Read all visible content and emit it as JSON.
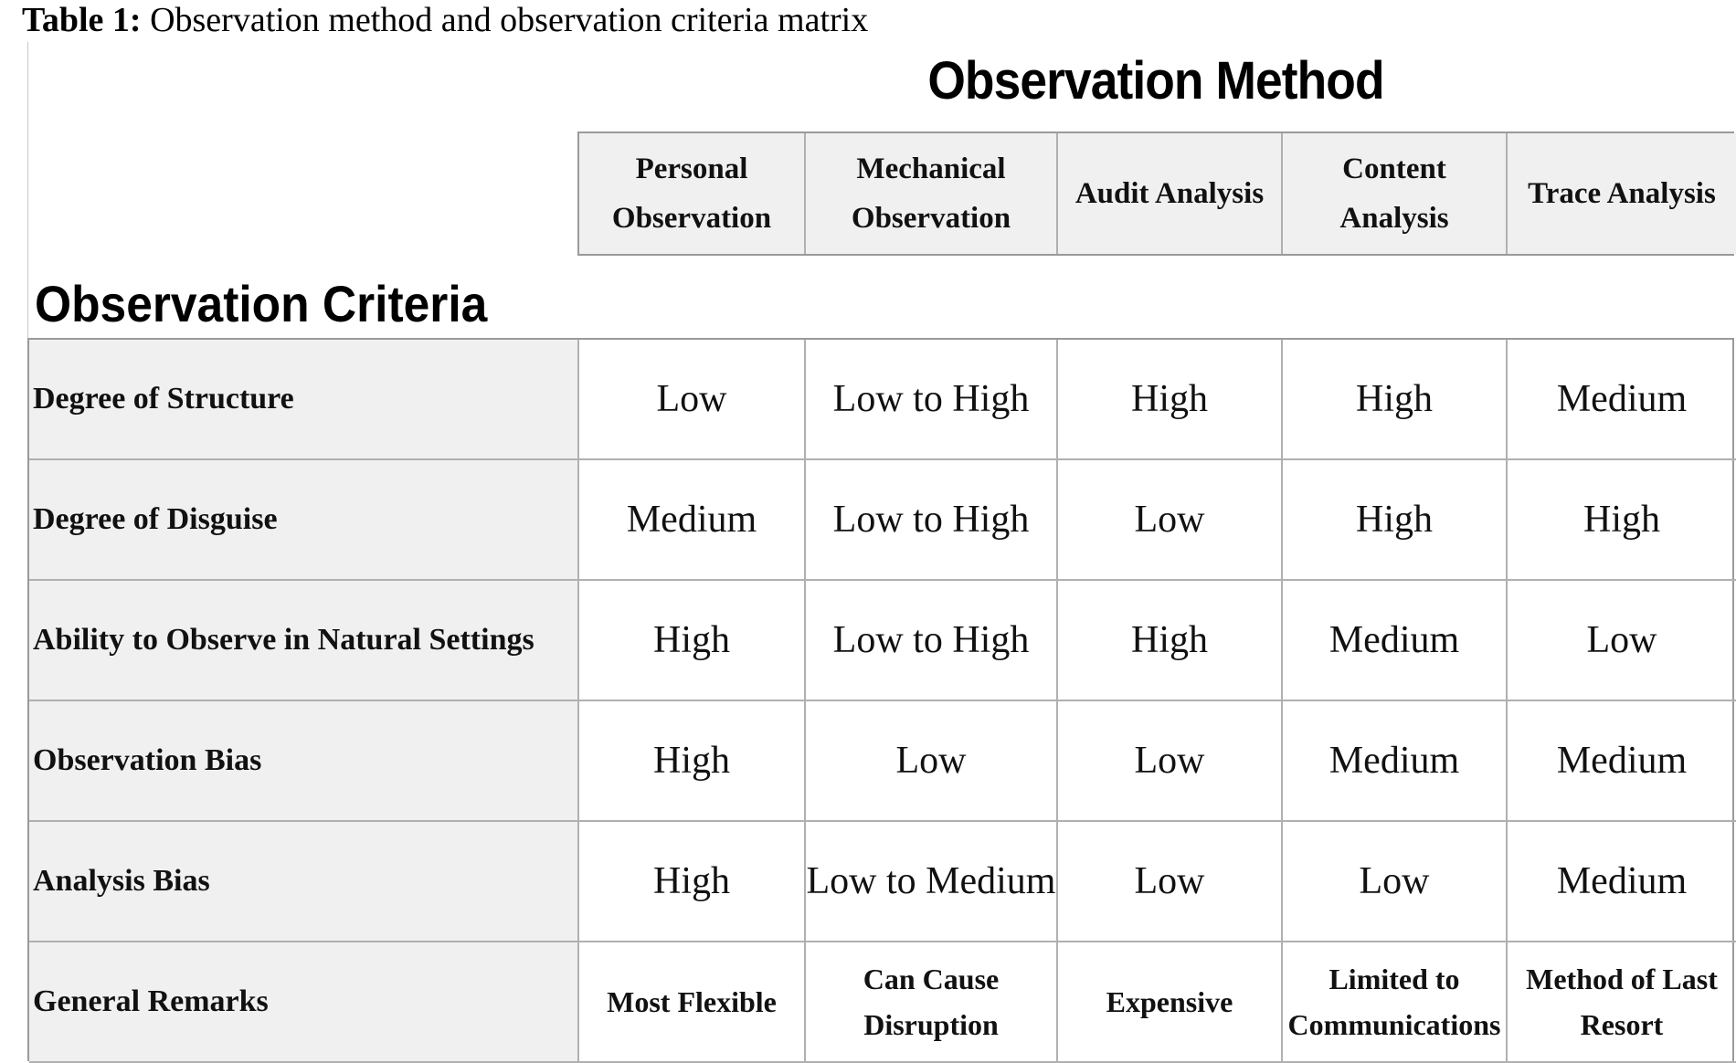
{
  "caption": {
    "label": "Table 1:",
    "text": " Observation method and observation criteria matrix"
  },
  "method_title": "Observation Method",
  "criteria_title": "Observation Criteria",
  "methods": [
    {
      "line1": "Personal",
      "line2": "Observation"
    },
    {
      "line1": "Mechanical",
      "line2": "Observation"
    },
    {
      "line1": "Audit Analysis",
      "line2": ""
    },
    {
      "line1": "Content",
      "line2": "Analysis"
    },
    {
      "line1": "Trace Analysis",
      "line2": ""
    }
  ],
  "rows": [
    {
      "criterion": "Degree of Structure",
      "values": [
        "Low",
        "Low to High",
        "High",
        "High",
        "Medium"
      ]
    },
    {
      "criterion": "Degree of Disguise",
      "values": [
        "Medium",
        "Low to High",
        "Low",
        "High",
        "High"
      ]
    },
    {
      "criterion": "Ability to Observe in Natural Settings",
      "values": [
        "High",
        "Low to High",
        "High",
        "Medium",
        "Low"
      ]
    },
    {
      "criterion": "Observation Bias",
      "values": [
        "High",
        "Low",
        "Low",
        "Medium",
        "Medium"
      ]
    },
    {
      "criterion": "Analysis Bias",
      "values": [
        "High",
        "Low to Medium",
        "Low",
        "Low",
        "Medium"
      ]
    }
  ],
  "remarks": {
    "criterion": "General Remarks",
    "values": [
      {
        "line1": "Most Flexible",
        "line2": ""
      },
      {
        "line1": "Can Cause",
        "line2": "Disruption"
      },
      {
        "line1": "Expensive",
        "line2": ""
      },
      {
        "line1": "Limited to",
        "line2": "Communications"
      },
      {
        "line1": "Method of Last",
        "line2": "Resort"
      }
    ]
  }
}
